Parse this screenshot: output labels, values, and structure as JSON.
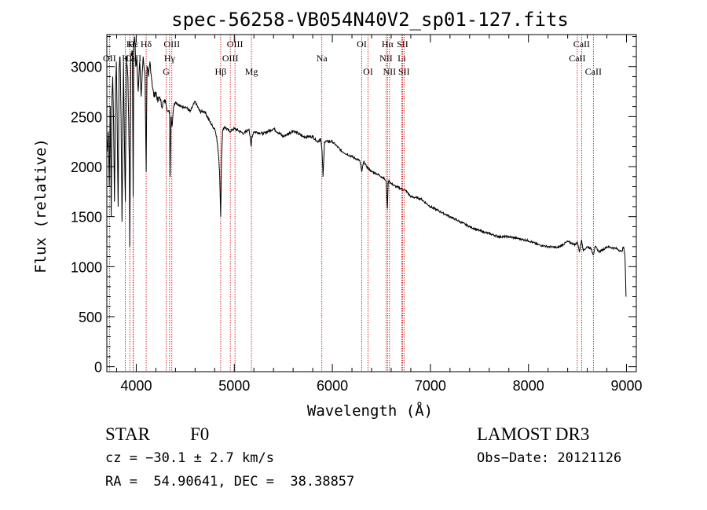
{
  "chart_data": {
    "type": "line",
    "title": "spec-56258-VB054N40V2_sp01-127.fits",
    "xlabel": "Wavelength (Å)",
    "ylabel": "Flux (relative)",
    "xlim": [
      3700,
      9100
    ],
    "ylim": [
      -50,
      3320
    ],
    "xticks": [
      4000,
      5000,
      6000,
      7000,
      8000,
      9000
    ],
    "yticks": [
      0,
      500,
      1000,
      1500,
      2000,
      2500,
      3000
    ],
    "series": [
      {
        "name": "flux",
        "x": [
          3700,
          3705,
          3715,
          3725,
          3735,
          3745,
          3752,
          3760,
          3768,
          3778,
          3790,
          3797,
          3805,
          3815,
          3825,
          3835,
          3845,
          3855,
          3870,
          3880,
          3889,
          3900,
          3915,
          3930,
          3934,
          3945,
          3960,
          3968,
          3975,
          3985,
          3995,
          4005,
          4020,
          4035,
          4050,
          4070,
          4090,
          4101,
          4110,
          4125,
          4140,
          4160,
          4180,
          4200,
          4220,
          4240,
          4260,
          4280,
          4300,
          4320,
          4340,
          4345,
          4355,
          4365,
          4380,
          4400,
          4450,
          4500,
          4550,
          4600,
          4650,
          4700,
          4750,
          4780,
          4800,
          4820,
          4840,
          4850,
          4861,
          4870,
          4880,
          4900,
          4950,
          5000,
          5100,
          5150,
          5172,
          5180,
          5200,
          5300,
          5400,
          5500,
          5600,
          5700,
          5800,
          5850,
          5880,
          5895,
          5905,
          5920,
          6000,
          6100,
          6200,
          6280,
          6300,
          6320,
          6350,
          6400,
          6450,
          6500,
          6530,
          6550,
          6562,
          6570,
          6580,
          6600,
          6650,
          6700,
          6750,
          6800,
          6900,
          7000,
          7100,
          7200,
          7300,
          7400,
          7500,
          7600,
          7700,
          7800,
          7900,
          8000,
          8100,
          8200,
          8300,
          8400,
          8480,
          8498,
          8520,
          8542,
          8560,
          8600,
          8640,
          8662,
          8680,
          8720,
          8760,
          8800,
          8900,
          8950,
          8970,
          8985,
          8995
        ],
        "y": [
          2200,
          2150,
          2350,
          1800,
          2600,
          1500,
          2700,
          2900,
          2500,
          1650,
          2850,
          3050,
          2500,
          1600,
          3000,
          3100,
          2500,
          1450,
          3050,
          2200,
          1650,
          3100,
          2900,
          2000,
          1200,
          3100,
          3150,
          1700,
          3200,
          3300,
          3000,
          3100,
          2750,
          3050,
          2700,
          3100,
          2900,
          1950,
          3000,
          2900,
          3050,
          2850,
          2700,
          2750,
          2650,
          2700,
          2600,
          2650,
          2650,
          2550,
          2550,
          1900,
          2500,
          2400,
          2600,
          2650,
          2600,
          2600,
          2550,
          2650,
          2550,
          2550,
          2450,
          2400,
          2380,
          2300,
          2100,
          1950,
          1500,
          2100,
          2350,
          2400,
          2350,
          2380,
          2330,
          2380,
          2200,
          2300,
          2350,
          2330,
          2380,
          2300,
          2360,
          2300,
          2300,
          2250,
          2280,
          2150,
          1900,
          2250,
          2250,
          2150,
          2100,
          2060,
          1950,
          2050,
          2000,
          1950,
          1930,
          1900,
          1880,
          1850,
          1580,
          1850,
          1860,
          1830,
          1800,
          1780,
          1760,
          1700,
          1680,
          1600,
          1550,
          1500,
          1450,
          1400,
          1360,
          1330,
          1300,
          1300,
          1280,
          1260,
          1220,
          1200,
          1190,
          1250,
          1220,
          1250,
          1150,
          1270,
          1160,
          1200,
          1180,
          1120,
          1200,
          1150,
          1170,
          1200,
          1180,
          1150,
          1200,
          1100,
          700
        ]
      }
    ],
    "lines": [
      {
        "label": "Hε",
        "x": 3970,
        "row": 0
      },
      {
        "label": "K",
        "x": 3934,
        "row": 0
      },
      {
        "label": "Hδ",
        "x": 4101,
        "row": 0
      },
      {
        "label": "OII",
        "x": 3727,
        "row": 1
      },
      {
        "label": "H",
        "x": 3889,
        "row": 1
      },
      {
        "label": "CaII",
        "x": 3968,
        "row": 1
      },
      {
        "label": "OIII",
        "x": 4363,
        "row": 0
      },
      {
        "label": "Hγ",
        "x": 4340,
        "row": 1
      },
      {
        "label": "G",
        "x": 4305,
        "row": 2
      },
      {
        "label": "OIII",
        "x": 5007,
        "row": 0
      },
      {
        "label": "OIII",
        "x": 4959,
        "row": 1
      },
      {
        "label": "Hβ",
        "x": 4861,
        "row": 2
      },
      {
        "label": "Mg",
        "x": 5175,
        "row": 2
      },
      {
        "label": "Na",
        "x": 5893,
        "row": 1
      },
      {
        "label": "OI",
        "x": 6300,
        "row": 0
      },
      {
        "label": "OI",
        "x": 6364,
        "row": 2
      },
      {
        "label": "Hα",
        "x": 6563,
        "row": 0
      },
      {
        "label": "SII",
        "x": 6716,
        "row": 0
      },
      {
        "label": "NII",
        "x": 6548,
        "row": 1
      },
      {
        "label": "Li",
        "x": 6708,
        "row": 1
      },
      {
        "label": "NII",
        "x": 6583,
        "row": 2
      },
      {
        "label": "SII",
        "x": 6731,
        "row": 2
      },
      {
        "label": "CaII",
        "x": 8542,
        "row": 0
      },
      {
        "label": "CaII",
        "x": 8498,
        "row": 1
      },
      {
        "label": "CaII",
        "x": 8662,
        "row": 2
      }
    ]
  },
  "info": {
    "object_type": "STAR",
    "subclass": "F0",
    "survey": "LAMOST DR3",
    "cz": "cz = −30.1 ± 2.7 km/s",
    "obs_date": "Obs−Date: 20121126",
    "coords": "RA =  54.90641, DEC =  38.38857"
  },
  "colors": {
    "line_marker": "#cc0000",
    "spectrum": "#000000",
    "axes": "#000000"
  }
}
